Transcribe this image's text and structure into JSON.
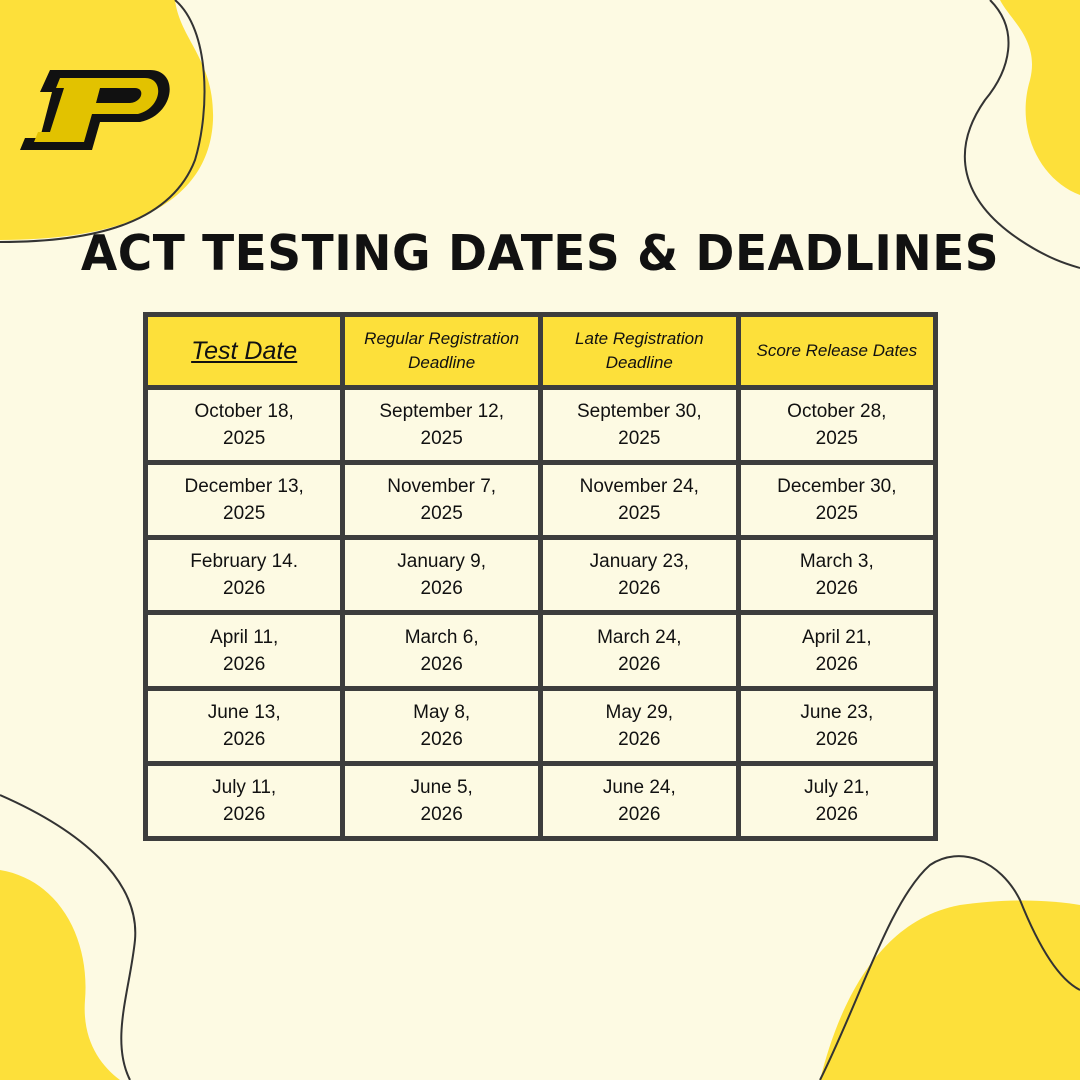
{
  "logo": {
    "letter": "P"
  },
  "title": "ACT TESTING DATES & DEADLINES",
  "colors": {
    "background": "#fdfae3",
    "accent": "#fde03a",
    "border": "#3d3d3d"
  },
  "table": {
    "headers": [
      "Test Date",
      "Regular Registration Deadline",
      "Late Registration Deadline",
      "Score Release Dates"
    ],
    "rows": [
      [
        [
          "October 18,",
          "2025"
        ],
        [
          "September 12,",
          "2025"
        ],
        [
          "September 30,",
          "2025"
        ],
        [
          "October 28,",
          "2025"
        ]
      ],
      [
        [
          "December 13,",
          "2025"
        ],
        [
          "November 7,",
          "2025"
        ],
        [
          "November 24,",
          "2025"
        ],
        [
          "December 30,",
          "2025"
        ]
      ],
      [
        [
          "February 14.",
          "2026"
        ],
        [
          "January 9,",
          "2026"
        ],
        [
          "January 23,",
          "2026"
        ],
        [
          "March 3,",
          "2026"
        ]
      ],
      [
        [
          "April 11,",
          "2026"
        ],
        [
          "March 6,",
          "2026"
        ],
        [
          "March 24,",
          "2026"
        ],
        [
          "April 21,",
          "2026"
        ]
      ],
      [
        [
          "June 13,",
          "2026"
        ],
        [
          "May 8,",
          "2026"
        ],
        [
          "May 29,",
          "2026"
        ],
        [
          "June 23,",
          "2026"
        ]
      ],
      [
        [
          "July 11,",
          "2026"
        ],
        [
          "June 5,",
          "2026"
        ],
        [
          "June 24,",
          "2026"
        ],
        [
          "July 21,",
          "2026"
        ]
      ]
    ]
  }
}
